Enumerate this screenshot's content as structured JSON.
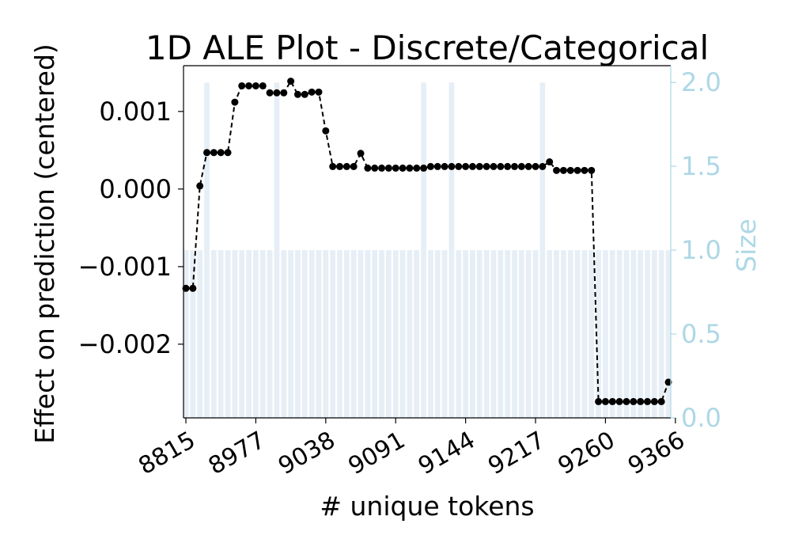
{
  "chart_data": {
    "type": "line",
    "title": "1D ALE Plot - Discrete/Categorical",
    "xlabel": "# unique tokens",
    "ylabel": "Effect on prediction (centered)",
    "y2label": "Size",
    "x_tick_labels": [
      "8815",
      "8977",
      "9038",
      "9091",
      "9144",
      "9217",
      "9260",
      "9366"
    ],
    "y_ticks": [
      0.001,
      0.0,
      -0.001,
      -0.002
    ],
    "y_tick_labels": [
      "0.001",
      "0.000",
      "−0.001",
      "−0.002"
    ],
    "y2_ticks": [
      0.0,
      0.5,
      1.0,
      1.5,
      2.0
    ],
    "y2_tick_labels": [
      "0.0",
      "0.5",
      "1.0",
      "1.5",
      "2.0"
    ],
    "ylim": [
      -0.00295,
      0.00159
    ],
    "y2lim": [
      0.0,
      2.1
    ],
    "grid": false,
    "colors": {
      "line": "#000000",
      "marker": "#000000",
      "bars": "#dde8f3",
      "y2_axis": "#add8e6"
    },
    "series": [
      {
        "values": [
          -0.00128,
          -0.00128,
          4e-05,
          0.00047,
          0.00047,
          0.00047,
          0.00047,
          0.00112,
          0.00133,
          0.00133,
          0.00133,
          0.00133,
          0.00124,
          0.00124,
          0.00124,
          0.00139,
          0.00122,
          0.00122,
          0.00125,
          0.00125,
          0.00075,
          0.00029,
          0.00029,
          0.00029,
          0.00029,
          0.00046,
          0.00027,
          0.00027,
          0.00027,
          0.00027,
          0.00027,
          0.00027,
          0.00027,
          0.00027,
          0.00027,
          0.00029,
          0.00029,
          0.00029,
          0.00029,
          0.00029,
          0.00029,
          0.00029,
          0.00029,
          0.00029,
          0.00029,
          0.00029,
          0.00029,
          0.00029,
          0.00029,
          0.00029,
          0.00029,
          0.00029,
          0.00035,
          0.00024,
          0.00024,
          0.00024,
          0.00024,
          0.00024,
          0.00024,
          -0.00274,
          -0.00274,
          -0.00274,
          -0.00274,
          -0.00274,
          -0.00274,
          -0.00274,
          -0.00274,
          -0.00274,
          -0.00274,
          -0.00249
        ]
      }
    ],
    "sizes": [
      1,
      1,
      1,
      2,
      1,
      1,
      1,
      1,
      1,
      1,
      1,
      1,
      1,
      2,
      1,
      1,
      1,
      1,
      1,
      1,
      1,
      1,
      1,
      1,
      1,
      1,
      1,
      1,
      1,
      1,
      1,
      1,
      1,
      1,
      2,
      1,
      1,
      1,
      2,
      1,
      1,
      1,
      1,
      1,
      1,
      1,
      1,
      1,
      1,
      1,
      1,
      2,
      1,
      1,
      1,
      1,
      1,
      1,
      1,
      1,
      1,
      1,
      1,
      1,
      1,
      1,
      1,
      1,
      1,
      1
    ]
  }
}
